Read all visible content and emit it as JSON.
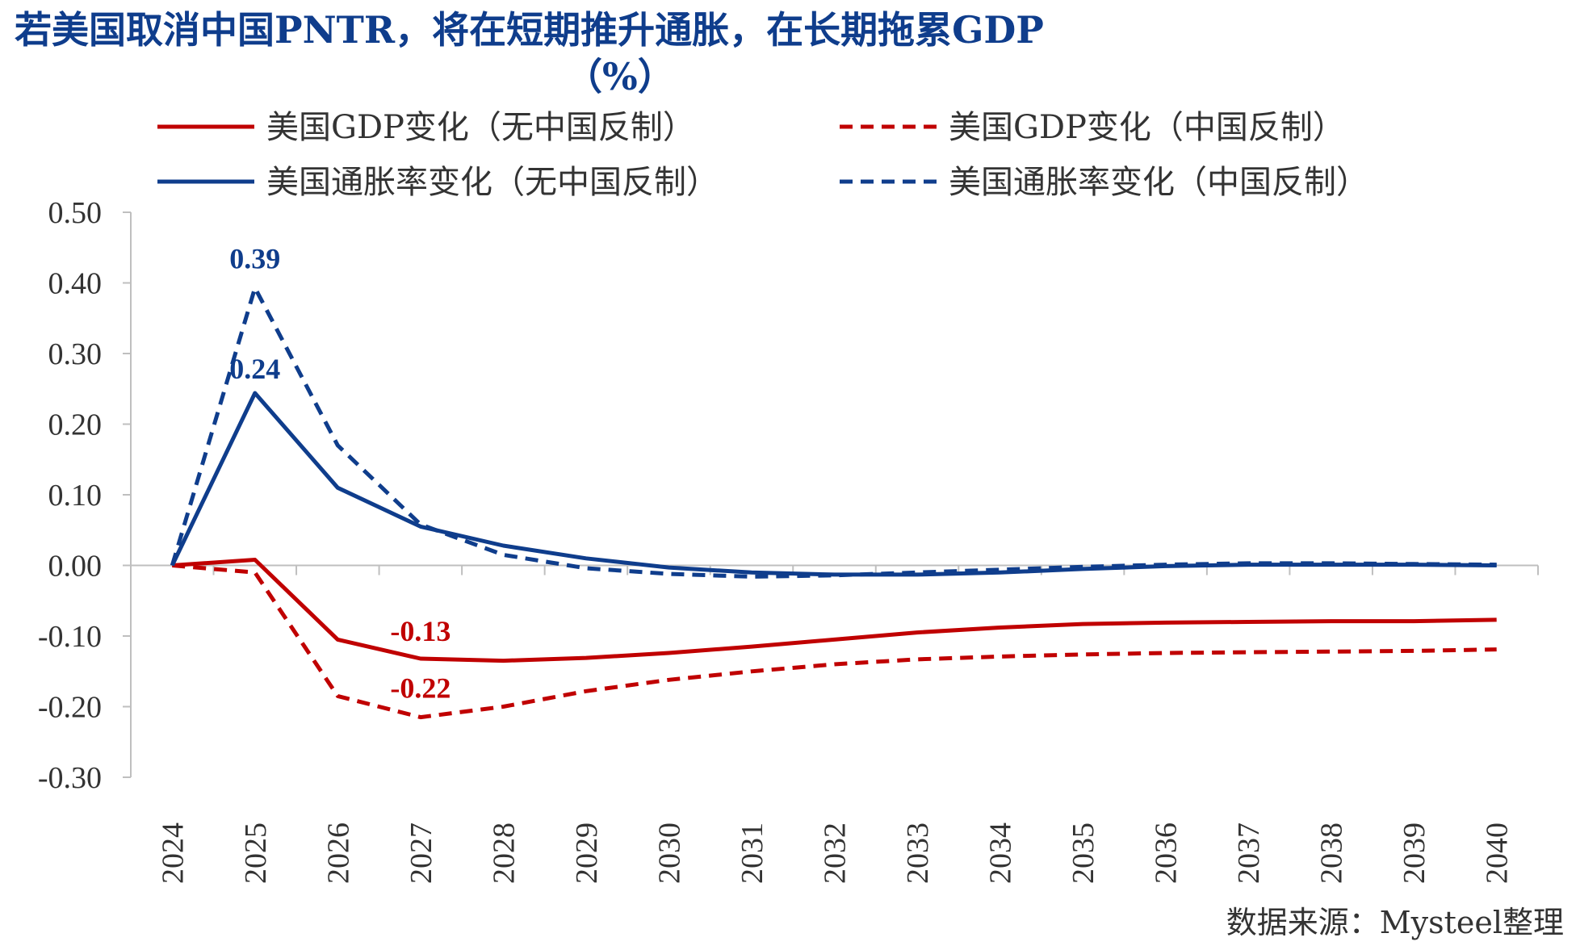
{
  "chart_data": {
    "type": "line",
    "title_line1": "若美国取消中国PNTR，将在短期推升通胀，在长期拖累GDP",
    "title_line2": "（%）",
    "x": [
      "2024",
      "2025",
      "2026",
      "2027",
      "2028",
      "2029",
      "2030",
      "2031",
      "2032",
      "2033",
      "2034",
      "2035",
      "2036",
      "2037",
      "2038",
      "2039",
      "2040"
    ],
    "ylim": [
      -0.3,
      0.5
    ],
    "yticks": [
      "0.50",
      "0.40",
      "0.30",
      "0.20",
      "0.10",
      "0.00",
      "-0.10",
      "-0.20",
      "-0.30"
    ],
    "ytick_values": [
      0.5,
      0.4,
      0.3,
      0.2,
      0.1,
      0,
      -0.1,
      -0.2,
      -0.3
    ],
    "series": [
      {
        "name": "美国GDP变化（无中国反制）",
        "color": "#c00000",
        "dash": false,
        "values": [
          0,
          0.008,
          -0.105,
          -0.132,
          -0.135,
          -0.131,
          -0.124,
          -0.115,
          -0.105,
          -0.095,
          -0.088,
          -0.083,
          -0.081,
          -0.08,
          -0.079,
          -0.079,
          -0.077
        ]
      },
      {
        "name": "美国GDP变化（中国反制）",
        "color": "#c00000",
        "dash": true,
        "values": [
          0,
          -0.01,
          -0.185,
          -0.215,
          -0.2,
          -0.178,
          -0.162,
          -0.15,
          -0.14,
          -0.133,
          -0.129,
          -0.126,
          -0.124,
          -0.123,
          -0.122,
          -0.121,
          -0.119
        ]
      },
      {
        "name": "美国通胀率变化（无中国反制）",
        "color": "#0f3d8c",
        "dash": false,
        "values": [
          0,
          0.244,
          0.11,
          0.055,
          0.028,
          0.01,
          -0.003,
          -0.01,
          -0.013,
          -0.013,
          -0.01,
          -0.005,
          -0.001,
          0.001,
          0.001,
          0.001,
          0.0
        ]
      },
      {
        "name": "美国通胀率变化（中国反制）",
        "color": "#0f3d8c",
        "dash": true,
        "values": [
          0,
          0.393,
          0.17,
          0.058,
          0.015,
          -0.004,
          -0.012,
          -0.016,
          -0.014,
          -0.01,
          -0.006,
          -0.002,
          0.001,
          0.003,
          0.003,
          0.002,
          0.001
        ]
      }
    ],
    "annotations": [
      {
        "text": "0.39",
        "series": 3,
        "index": 1,
        "color": "#0f3d8c",
        "dy": -24
      },
      {
        "text": "0.24",
        "series": 2,
        "index": 1,
        "color": "#0f3d8c",
        "dy": -18
      },
      {
        "text": "-0.13",
        "series": 0,
        "index": 3,
        "color": "#c00000",
        "dy": -22
      },
      {
        "text": "-0.22",
        "series": 1,
        "index": 3,
        "color": "#c00000",
        "dy": -24
      }
    ],
    "source": "数据来源：Mysteel整理"
  }
}
